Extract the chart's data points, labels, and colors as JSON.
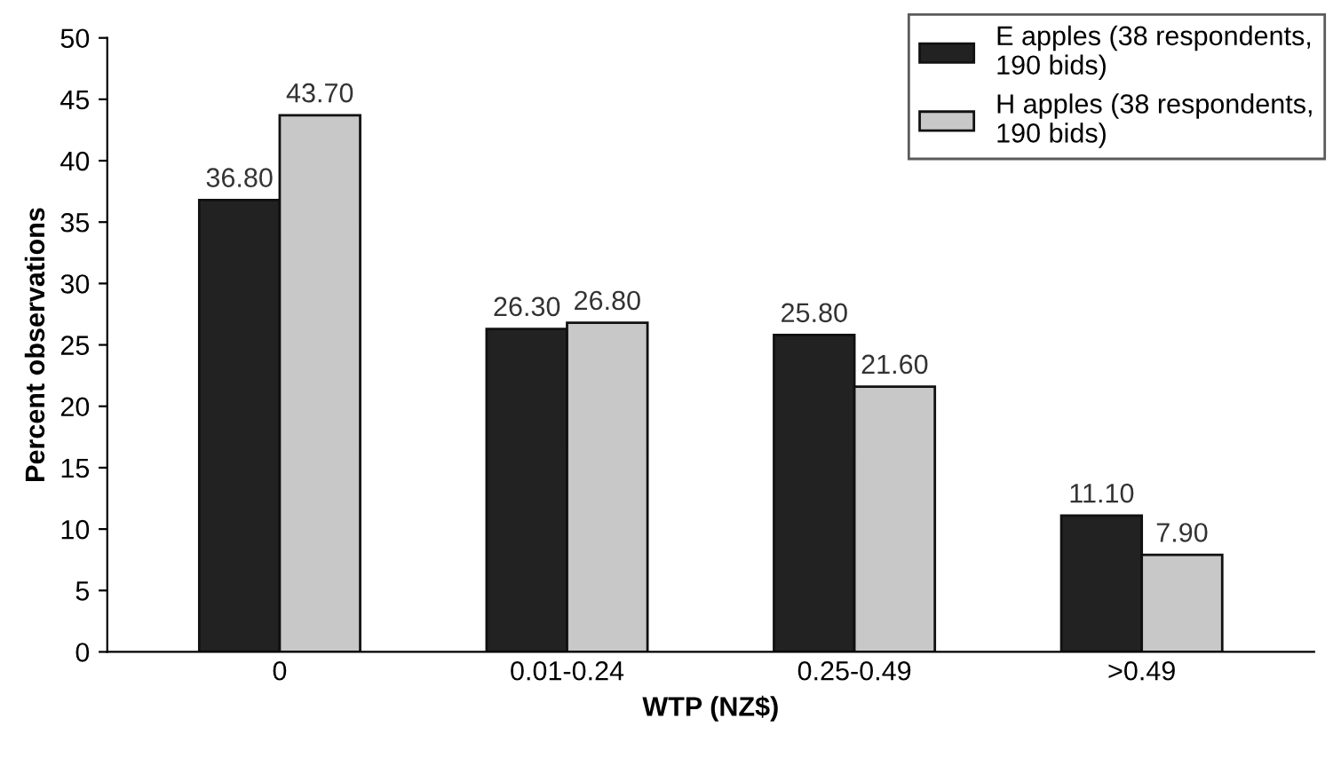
{
  "chart_data": {
    "type": "bar",
    "xlabel": "WTP (NZ$)",
    "ylabel": "Percent observations",
    "categories": [
      "0",
      "0.01-0.24",
      "0.25-0.49",
      ">0.49"
    ],
    "series": [
      {
        "name": "E apples (38 respondents,\n190 bids)",
        "color": "#222222",
        "values": [
          36.8,
          26.3,
          25.8,
          11.1
        ],
        "value_labels": [
          "36.80",
          "26.30",
          "25.80",
          "11.10"
        ]
      },
      {
        "name": "H apples (38 respondents,\n190 bids)",
        "color": "#c8c8c8",
        "values": [
          43.7,
          26.8,
          21.6,
          7.9
        ],
        "value_labels": [
          "43.70",
          "26.80",
          "21.60",
          "7.90"
        ]
      }
    ],
    "ylim": [
      0,
      50
    ],
    "yticks": [
      0,
      5,
      10,
      15,
      20,
      25,
      30,
      35,
      40,
      45,
      50
    ],
    "grid": false,
    "legend": "top right"
  }
}
